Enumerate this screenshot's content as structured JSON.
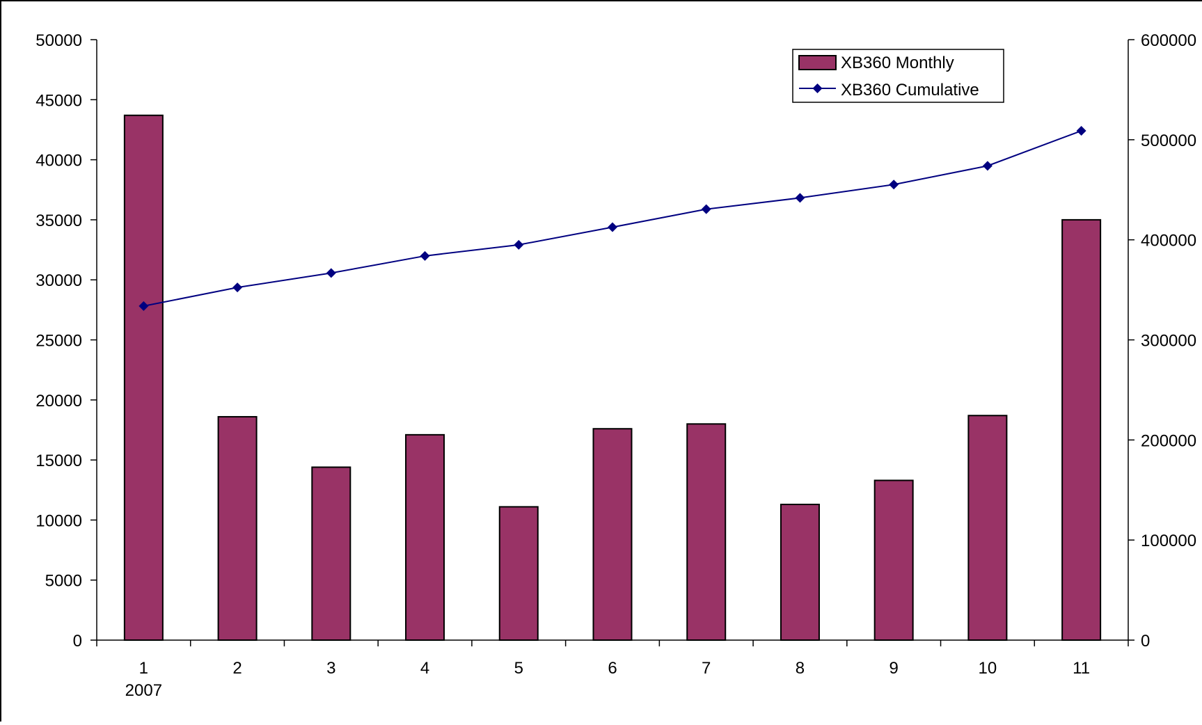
{
  "chart_data": {
    "type": "bar",
    "categories": [
      "1",
      "2",
      "3",
      "4",
      "5",
      "6",
      "7",
      "8",
      "9",
      "10",
      "11"
    ],
    "category_sublabels": [
      "2007",
      "",
      "",
      "",
      "",
      "",
      "",
      "",
      "",
      "",
      ""
    ],
    "series": [
      {
        "name": "XB360 Monthly",
        "type": "bar",
        "axis": "left",
        "color": "#993366",
        "values": [
          43700,
          18600,
          14400,
          17100,
          11100,
          17600,
          18000,
          11300,
          13300,
          18700,
          35000
        ]
      },
      {
        "name": "XB360 Cumulative",
        "type": "line",
        "axis": "right",
        "color": "#000080",
        "marker": "diamond",
        "values": [
          333800,
          352400,
          366800,
          383900,
          395000,
          412600,
          430600,
          441900,
          455200,
          473900,
          508900
        ]
      }
    ],
    "y_left": {
      "ylim": [
        0,
        50000
      ],
      "ticks": [
        "0",
        "5000",
        "10000",
        "15000",
        "20000",
        "25000",
        "30000",
        "35000",
        "40000",
        "45000",
        "50000"
      ]
    },
    "y_right": {
      "ylim": [
        0,
        600000
      ],
      "ticks": [
        "0",
        "100000",
        "200000",
        "300000",
        "400000",
        "500000",
        "600000"
      ]
    },
    "title": "",
    "xlabel": "",
    "ylabel": "",
    "grid": false,
    "legend_position": "top-right"
  }
}
